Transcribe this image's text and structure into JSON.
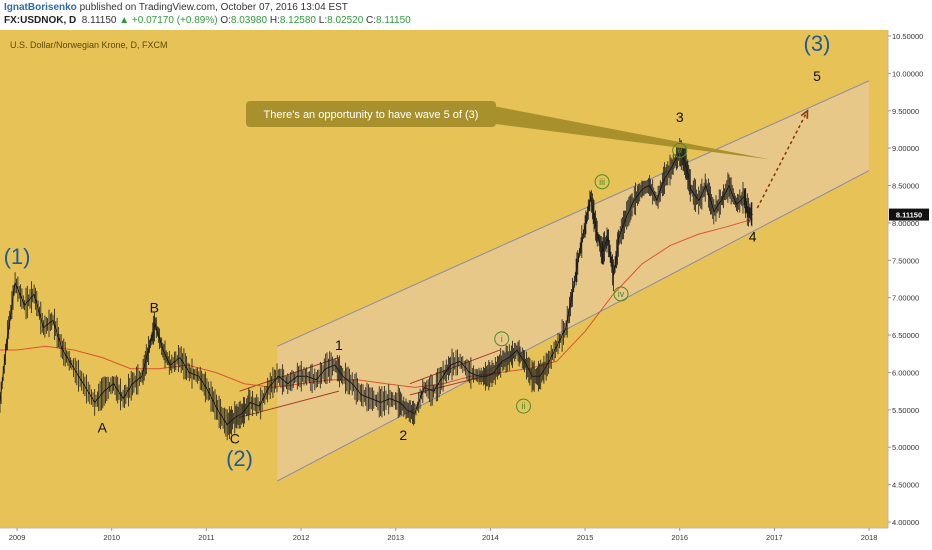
{
  "header": {
    "author": "IgnatBorisenko",
    "published_text": "published on TradingView.com, October 07, 2016 13:04 EST",
    "symbol": "FX:USDNOK, D",
    "last": "8.11150",
    "change": "▲ +0.07170 (+0.89%)",
    "o_label": "O:",
    "o_value": "8.03980",
    "h_label": "H:",
    "h_value": "8.12580",
    "l_label": "L:",
    "l_value": "8.02520",
    "c_label": "C:",
    "c_value": "8.11150"
  },
  "colors": {
    "background": "#e6c257",
    "panel": "#ffffff",
    "channel_fill": "#e9ceb0",
    "channel_line": "#8a8aa6",
    "price_line": "#1c1c1c",
    "ma_line": "#d9552f",
    "subchannel_line": "#a63c2c",
    "callout_fill": "#a8912c",
    "forecast_arrow": "#8b3a12",
    "wave_big": "#1f5a9a",
    "wave_small": "#4f8a2c",
    "last_price_tag": "#111111"
  },
  "chart_data": {
    "type": "line",
    "title": "U.S. Dollar/Norwegian Krone, D, FXCM",
    "xlabel": "",
    "ylabel": "",
    "x_range": [
      2008.82,
      2018.2
    ],
    "ylim": [
      3.92,
      10.58
    ],
    "grid": false,
    "x_ticks": [
      "2009",
      "2010",
      "2011",
      "2012",
      "2013",
      "2014",
      "2015",
      "2016",
      "2017",
      "2018"
    ],
    "y_ticks": [
      "4.00000",
      "4.50000",
      "5.00000",
      "5.50000",
      "6.00000",
      "6.50000",
      "7.00000",
      "7.50000",
      "8.00000",
      "8.50000",
      "9.00000",
      "9.50000",
      "10.00000",
      "10.50000"
    ],
    "last_price": "8.11150",
    "series": [
      {
        "kind": "price",
        "x": [
          2008.82,
          2008.9,
          2008.98,
          2009.08,
          2009.18,
          2009.28,
          2009.38,
          2009.48,
          2009.58,
          2009.7,
          2009.82,
          2009.92,
          2010.02,
          2010.12,
          2010.22,
          2010.32,
          2010.4,
          2010.46,
          2010.54,
          2010.62,
          2010.72,
          2010.82,
          2010.92,
          2011.02,
          2011.12,
          2011.22,
          2011.3,
          2011.38,
          2011.46,
          2011.56,
          2011.66,
          2011.76,
          2011.86,
          2011.96,
          2012.06,
          2012.16,
          2012.26,
          2012.36,
          2012.44,
          2012.54,
          2012.64,
          2012.74,
          2012.84,
          2012.94,
          2013.04,
          2013.12,
          2013.2,
          2013.3,
          2013.4,
          2013.5,
          2013.58,
          2013.68,
          2013.78,
          2013.88,
          2013.96,
          2014.04,
          2014.12,
          2014.2,
          2014.28,
          2014.36,
          2014.44,
          2014.52,
          2014.6,
          2014.7,
          2014.8,
          2014.88,
          2014.94,
          2015.0,
          2015.06,
          2015.12,
          2015.18,
          2015.24,
          2015.3,
          2015.36,
          2015.44,
          2015.52,
          2015.6,
          2015.68,
          2015.76,
          2015.84,
          2015.92,
          2016.0,
          2016.06,
          2016.12,
          2016.2,
          2016.28,
          2016.36,
          2016.44,
          2016.52,
          2016.6,
          2016.68,
          2016.72,
          2016.77
        ],
        "y": [
          5.6,
          6.5,
          7.2,
          6.9,
          7.05,
          6.6,
          6.7,
          6.3,
          6.1,
          5.85,
          5.6,
          5.75,
          5.85,
          5.65,
          5.85,
          5.95,
          6.35,
          6.65,
          6.3,
          6.1,
          6.2,
          6.0,
          5.95,
          5.75,
          5.5,
          5.3,
          5.4,
          5.45,
          5.6,
          5.55,
          5.8,
          5.95,
          5.85,
          5.95,
          5.95,
          5.9,
          6.05,
          6.1,
          5.95,
          5.85,
          5.7,
          5.65,
          5.6,
          5.65,
          5.6,
          5.5,
          5.45,
          5.8,
          5.75,
          5.95,
          6.1,
          6.15,
          6.0,
          5.95,
          5.95,
          6.0,
          6.15,
          6.2,
          6.3,
          6.15,
          5.95,
          5.95,
          6.1,
          6.35,
          6.6,
          7.15,
          7.6,
          7.95,
          8.35,
          7.9,
          7.6,
          7.8,
          7.3,
          7.8,
          8.1,
          8.3,
          8.45,
          8.5,
          8.3,
          8.6,
          8.75,
          8.95,
          8.8,
          8.45,
          8.3,
          8.5,
          8.15,
          8.3,
          8.5,
          8.25,
          8.35,
          8.15,
          8.11
        ]
      },
      {
        "kind": "moving-average",
        "x": [
          2008.82,
          2009.0,
          2009.3,
          2009.6,
          2009.9,
          2010.2,
          2010.5,
          2010.8,
          2011.1,
          2011.4,
          2011.7,
          2012.0,
          2012.3,
          2012.6,
          2012.9,
          2013.2,
          2013.5,
          2013.8,
          2014.1,
          2014.4,
          2014.7,
          2015.0,
          2015.3,
          2015.6,
          2015.9,
          2016.2,
          2016.5,
          2016.77
        ],
        "y": [
          6.3,
          6.3,
          6.35,
          6.3,
          6.2,
          6.05,
          6.05,
          6.1,
          6.0,
          5.85,
          5.8,
          5.85,
          5.9,
          5.9,
          5.85,
          5.8,
          5.85,
          5.95,
          6.0,
          6.05,
          6.15,
          6.55,
          7.05,
          7.45,
          7.7,
          7.85,
          7.95,
          8.05
        ]
      },
      {
        "kind": "channel",
        "upper": {
          "x": [
            2011.75,
            2018.0
          ],
          "y": [
            6.35,
            9.9
          ]
        },
        "lower": {
          "x": [
            2011.75,
            2018.0
          ],
          "y": [
            4.55,
            8.7
          ]
        }
      },
      {
        "kind": "subchannel-1",
        "upper": {
          "x": [
            2011.35,
            2012.4
          ],
          "y": [
            5.75,
            6.2
          ]
        },
        "lower": {
          "x": [
            2011.35,
            2012.4
          ],
          "y": [
            5.4,
            5.75
          ]
        }
      },
      {
        "kind": "subchannel-i",
        "upper": {
          "x": [
            2013.15,
            2014.1
          ],
          "y": [
            5.85,
            6.3
          ]
        },
        "lower": {
          "x": [
            2013.15,
            2014.1
          ],
          "y": [
            5.7,
            6.0
          ]
        }
      },
      {
        "kind": "forecast",
        "x": [
          2016.82,
          2017.35
        ],
        "y": [
          8.2,
          9.5
        ]
      }
    ],
    "callout": {
      "text": "There's an opportunity to have wave 5 of (3)",
      "points_to": {
        "x": 2016.95,
        "y": 8.85
      }
    },
    "wave_labels": [
      {
        "text": "(1)",
        "style": "big",
        "x": 2009.0,
        "y": 7.45
      },
      {
        "text": "(2)",
        "style": "big",
        "x": 2011.35,
        "y": 4.75
      },
      {
        "text": "(3)",
        "style": "big",
        "x": 2017.45,
        "y": 10.3
      },
      {
        "text": "A",
        "style": "mid",
        "x": 2009.9,
        "y": 5.2
      },
      {
        "text": "B",
        "style": "mid",
        "x": 2010.45,
        "y": 6.8
      },
      {
        "text": "C",
        "style": "mid",
        "x": 2011.3,
        "y": 5.05
      },
      {
        "text": "1",
        "style": "mid",
        "x": 2012.4,
        "y": 6.3
      },
      {
        "text": "2",
        "style": "mid",
        "x": 2013.08,
        "y": 5.1
      },
      {
        "text": "3",
        "style": "mid",
        "x": 2016.0,
        "y": 9.35
      },
      {
        "text": "4",
        "style": "mid",
        "x": 2016.77,
        "y": 7.75
      },
      {
        "text": "5",
        "style": "mid",
        "x": 2017.45,
        "y": 9.9
      },
      {
        "text": "i",
        "style": "small",
        "x": 2014.12,
        "y": 6.45
      },
      {
        "text": "ii",
        "style": "small",
        "x": 2014.35,
        "y": 5.55
      },
      {
        "text": "iii",
        "style": "small",
        "x": 2015.18,
        "y": 8.55
      },
      {
        "text": "iv",
        "style": "small",
        "x": 2015.38,
        "y": 7.05
      },
      {
        "text": "v",
        "style": "small",
        "x": 2016.0,
        "y": 8.97
      }
    ]
  }
}
